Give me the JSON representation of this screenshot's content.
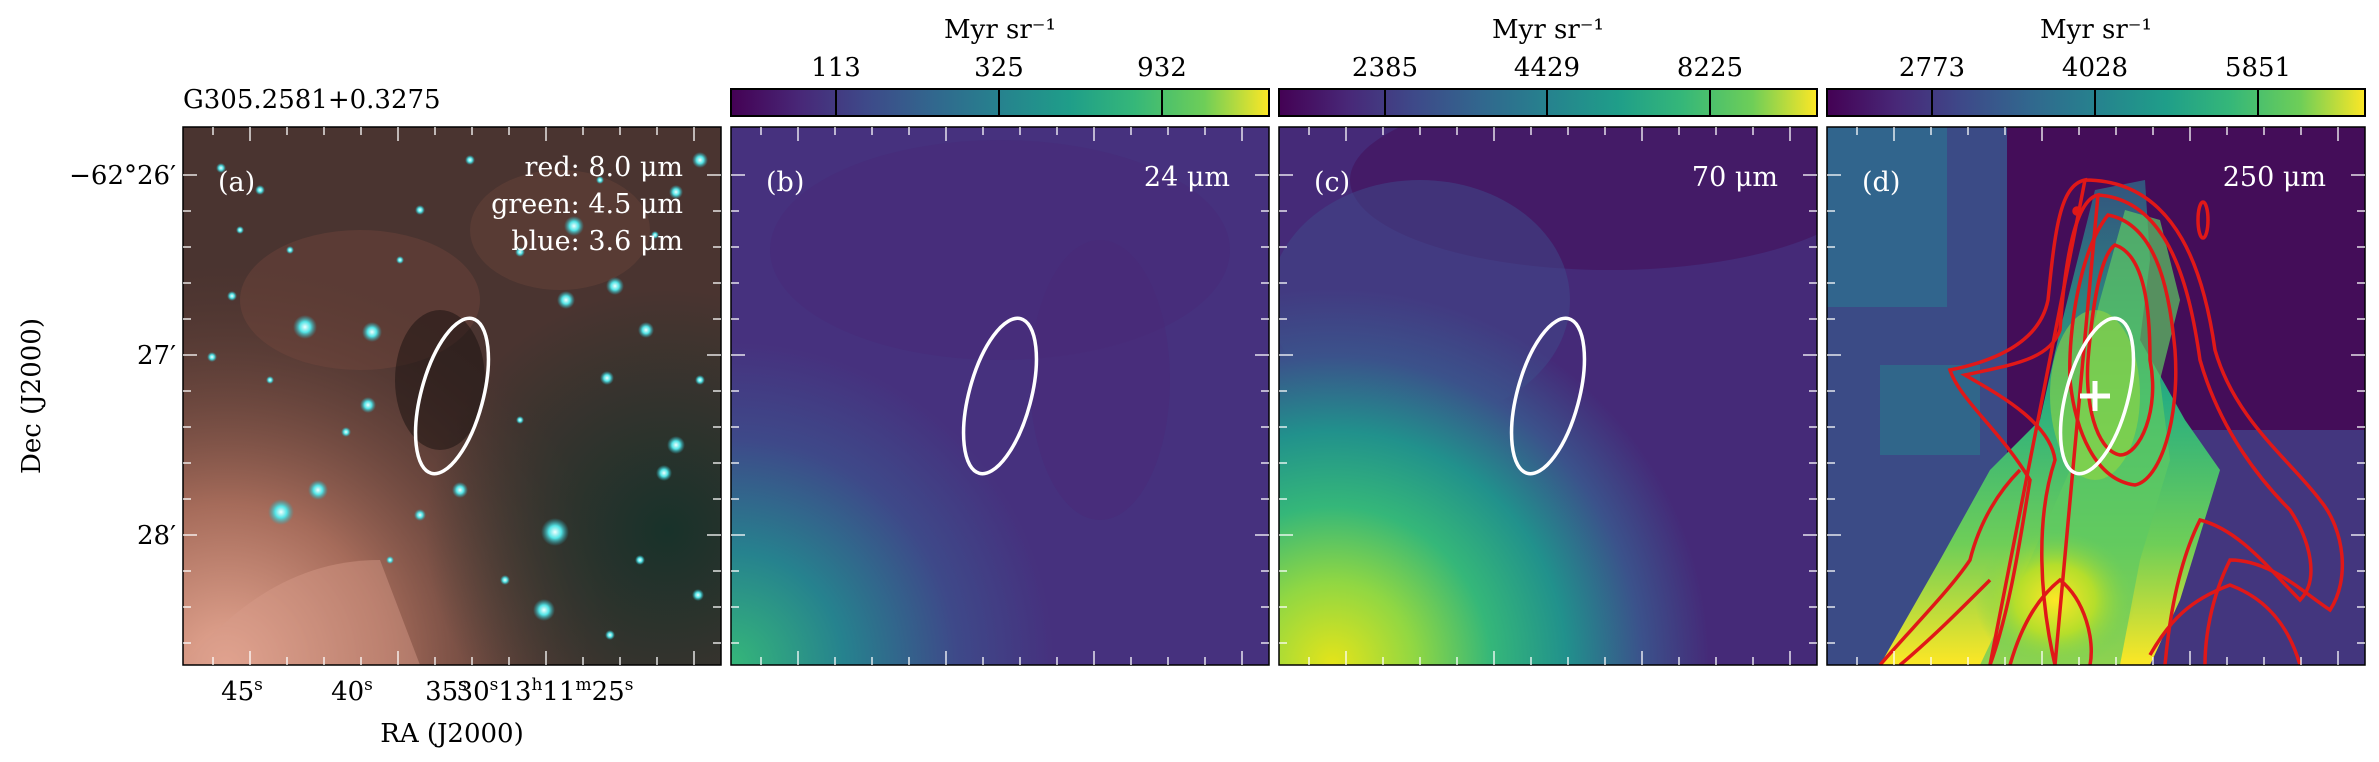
{
  "source_name": "G305.2581+0.3275",
  "axes": {
    "x_label": "RA (J2000)",
    "y_label": "Dec (J2000)",
    "x_ticks": [
      {
        "label": "45",
        "sup": "s"
      },
      {
        "label": "40",
        "sup": "s"
      },
      {
        "label": "35",
        "sup": "s"
      },
      {
        "label": "30",
        "sup": "s"
      },
      {
        "label": "13",
        "sup": "h"
      },
      {
        "label": "11",
        "sup": "m"
      },
      {
        "label": "25",
        "sup": "s"
      }
    ],
    "y_ticks": [
      "−62°26′",
      "27′",
      "28′"
    ]
  },
  "panels": [
    {
      "tag": "(a)",
      "legend": [
        "red: 8.0 μm",
        "green: 4.5 μm",
        "blue: 3.6 μm"
      ]
    },
    {
      "tag": "(b)",
      "band": "24 μm",
      "unit": "Myr sr⁻¹",
      "ticks": [
        "113",
        "325",
        "932"
      ]
    },
    {
      "tag": "(c)",
      "band": "70 μm",
      "unit": "Myr sr⁻¹",
      "ticks": [
        "2385",
        "4429",
        "8225"
      ]
    },
    {
      "tag": "(d)",
      "band": "250 μm",
      "unit": "Myr sr⁻¹",
      "ticks": [
        "2773",
        "4028",
        "5851"
      ]
    }
  ],
  "colors": {
    "contour": "#e01818",
    "ellipse": "#ffffff",
    "marker": "#ffffff"
  }
}
